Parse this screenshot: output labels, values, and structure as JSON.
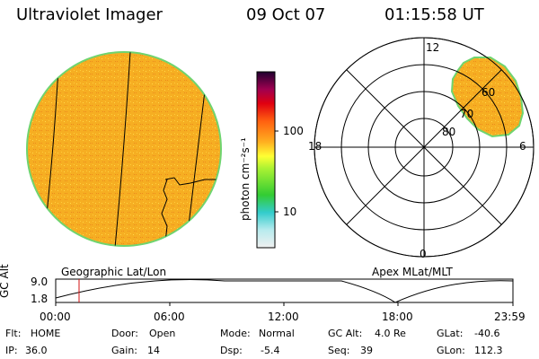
{
  "header": {
    "instrument": "Ultraviolet Imager",
    "date": "09 Oct 07",
    "time": "01:15:58 UT"
  },
  "colorbar": {
    "unit_label": "photon cm⁻²s⁻¹",
    "ticks": [
      "100",
      "10"
    ]
  },
  "left_panel": {
    "caption": "Geographic Lat/Lon"
  },
  "right_panel": {
    "caption": "Apex MLat/MLT",
    "mlt_labels": {
      "top": "12",
      "left": "18",
      "right": "6",
      "bottom": "0"
    },
    "lat_labels": [
      "60",
      "70",
      "80"
    ]
  },
  "altitude_plot": {
    "ylabel": "GC Alt",
    "y_ticks": [
      "9.0",
      "1.8"
    ],
    "x_ticks": [
      "00:00",
      "06:00",
      "12:00",
      "18:00",
      "23:59"
    ],
    "marker_time": "01:15:58"
  },
  "status": {
    "flt_label": "Flt:",
    "flt_value": "HOME",
    "ip_label": "IP:",
    "ip_value": "36.0",
    "door_label": "Door:",
    "door_value": "Open",
    "gain_label": "Gain:",
    "gain_value": "14",
    "mode_label": "Mode:",
    "mode_value": "Normal",
    "dsp_label": "Dsp:",
    "dsp_value": "-5.4",
    "gcalt_label": "GC Alt:",
    "gcalt_value": "4.0 Re",
    "seq_label": "Seq:",
    "seq_value": "39",
    "glat_label": "GLat:",
    "glat_value": "-40.6",
    "glon_label": "GLon:",
    "glon_value": "112.3"
  },
  "colors": {
    "image_fill": "#f7b523",
    "image_edge": "#6fd46f",
    "marker": "#d01010"
  }
}
